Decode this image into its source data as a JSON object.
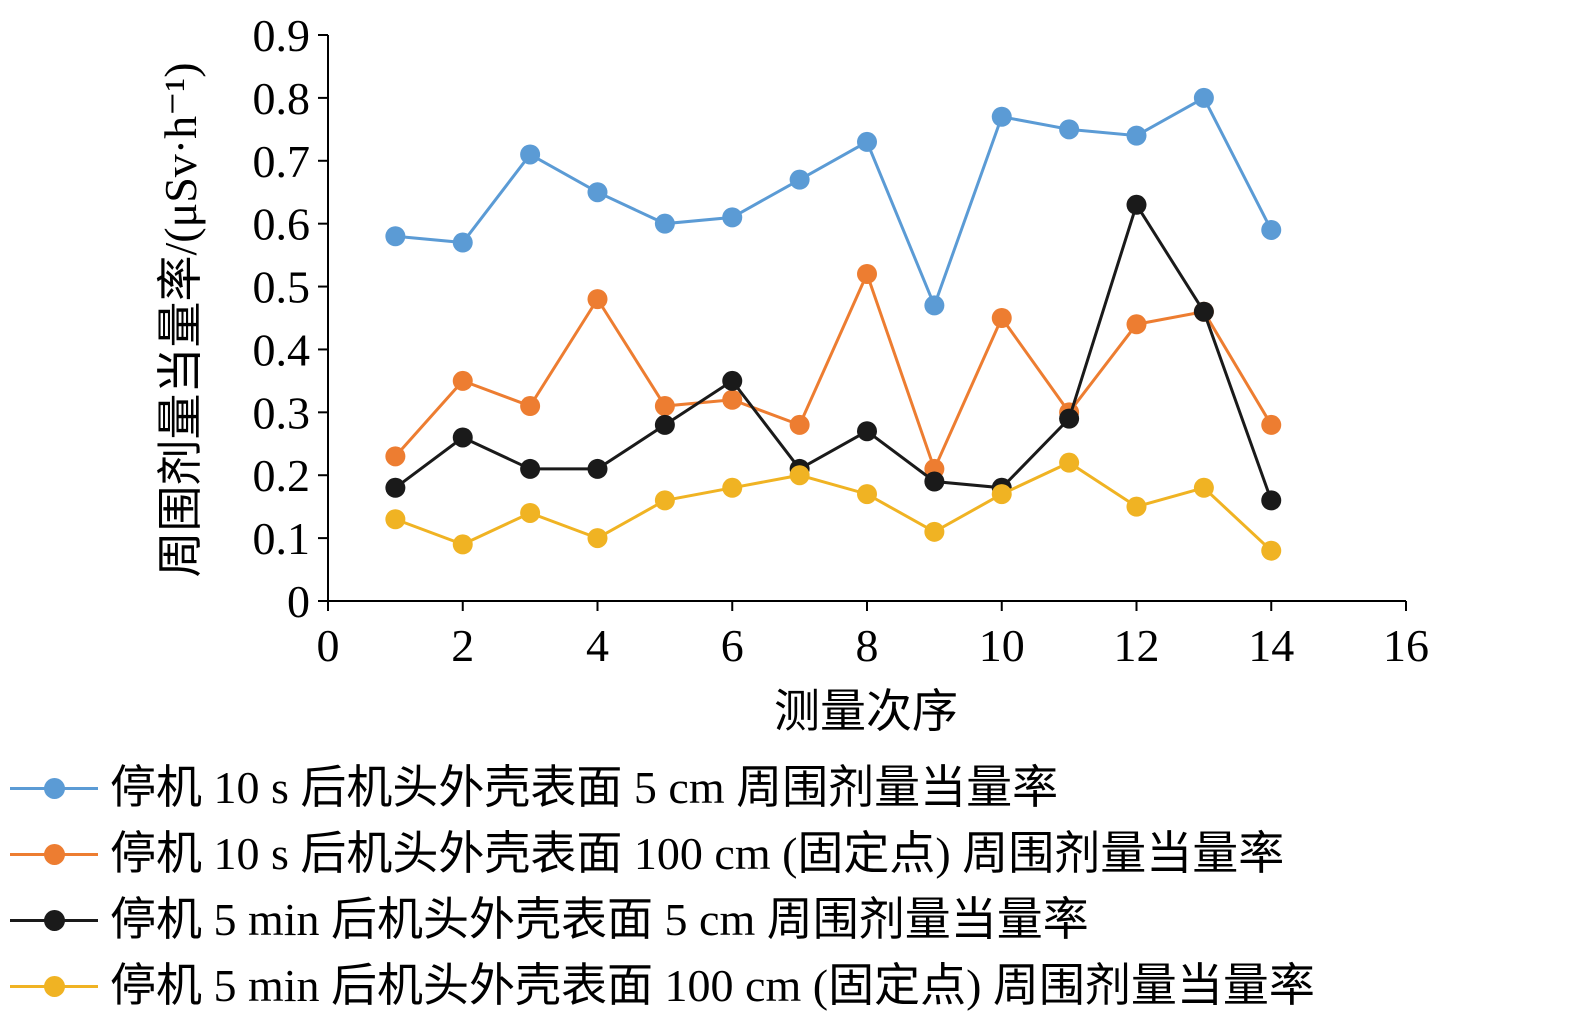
{
  "chart_data": {
    "type": "line",
    "title": "",
    "xlabel": "测量次序",
    "ylabel": "周围剂量当量率/(μSv·h⁻¹)",
    "xlim": [
      0,
      16
    ],
    "ylim": [
      0,
      0.9
    ],
    "xticks": [
      0,
      2,
      4,
      6,
      8,
      10,
      12,
      14,
      16
    ],
    "yticks": [
      "0",
      "0.1",
      "0.2",
      "0.3",
      "0.4",
      "0.5",
      "0.6",
      "0.7",
      "0.8",
      "0.9"
    ],
    "grid": false,
    "legend_position": "bottom",
    "x": [
      1,
      2,
      3,
      4,
      5,
      6,
      7,
      8,
      9,
      10,
      11,
      12,
      13,
      14
    ],
    "series": [
      {
        "name": "停机 10 s 后机头外壳表面 5 cm 周围剂量当量率",
        "color": "#5b9bd5",
        "values": [
          0.58,
          0.57,
          0.71,
          0.65,
          0.6,
          0.61,
          0.67,
          0.73,
          0.47,
          0.77,
          0.75,
          0.74,
          0.8,
          0.59
        ]
      },
      {
        "name": "停机 10 s 后机头外壳表面 100 cm (固定点) 周围剂量当量率",
        "color": "#ed7d31",
        "values": [
          0.23,
          0.35,
          0.31,
          0.48,
          0.31,
          0.32,
          0.28,
          0.52,
          0.21,
          0.45,
          0.3,
          0.44,
          0.46,
          0.28
        ]
      },
      {
        "name": "停机 5 min 后机头外壳表面 5 cm 周围剂量当量率",
        "color": "#1a1a1a",
        "values": [
          0.18,
          0.26,
          0.21,
          0.21,
          0.28,
          0.35,
          0.21,
          0.27,
          0.19,
          0.18,
          0.29,
          0.63,
          0.46,
          0.16
        ]
      },
      {
        "name": "停机 5 min 后机头外壳表面 100 cm (固定点) 周围剂量当量率",
        "color": "#f0b323",
        "values": [
          0.13,
          0.09,
          0.14,
          0.1,
          0.16,
          0.18,
          0.2,
          0.17,
          0.11,
          0.17,
          0.22,
          0.15,
          0.18,
          0.08
        ]
      }
    ]
  }
}
